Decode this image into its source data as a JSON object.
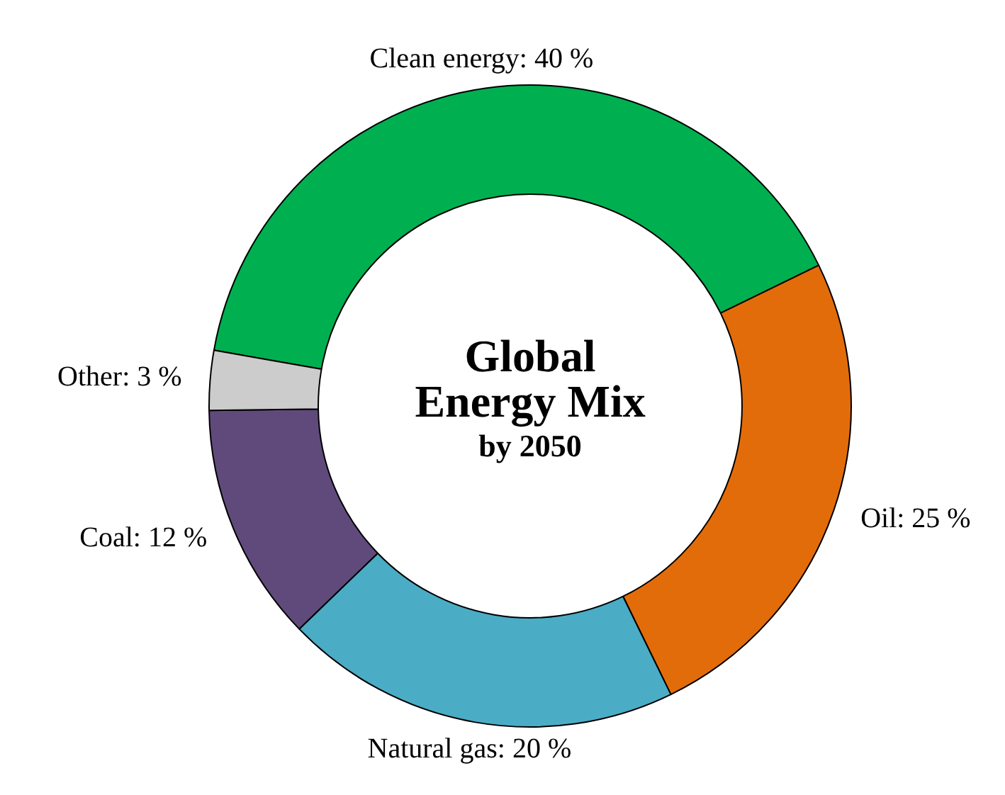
{
  "chart_data": {
    "type": "donut",
    "title": "Global Energy Mix",
    "subtitle": "by 2050",
    "categories": [
      "Clean energy",
      "Oil",
      "Natural gas",
      "Coal",
      "Other"
    ],
    "values": [
      40,
      25,
      20,
      12,
      3
    ],
    "value_labels": [
      "40 %",
      "25 %",
      "20 %",
      "12 %",
      "3 %"
    ],
    "colors": [
      "#00b050",
      "#e36c0a",
      "#4bacc6",
      "#604a7b",
      "#cccccc"
    ],
    "legend": false
  }
}
